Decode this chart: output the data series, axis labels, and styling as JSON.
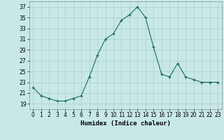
{
  "x_vals": [
    0,
    1,
    2,
    3,
    4,
    5,
    6,
    7,
    8,
    9,
    10,
    11,
    12,
    13,
    14,
    15,
    16,
    17,
    18,
    19,
    20,
    21,
    22,
    23
  ],
  "y_vals": [
    22,
    20.5,
    20,
    19.5,
    19.5,
    20,
    20.5,
    24,
    28,
    31,
    32,
    34.5,
    35.5,
    37,
    35,
    29.5,
    24.5,
    24,
    26.5,
    24,
    23.5,
    23,
    23,
    23
  ],
  "line_color": "#1a6b5a",
  "bg_color": "#c8e8e8",
  "grid_color": "#aacccc",
  "xlabel": "Humidex (Indice chaleur)",
  "ylim": [
    18,
    38
  ],
  "xlim": [
    -0.5,
    23.5
  ],
  "yticks": [
    19,
    21,
    23,
    25,
    27,
    29,
    31,
    33,
    35,
    37
  ],
  "xtick_labels": [
    "0",
    "1",
    "2",
    "3",
    "4",
    "5",
    "6",
    "7",
    "8",
    "9",
    "10",
    "11",
    "12",
    "13",
    "14",
    "15",
    "16",
    "17",
    "18",
    "19",
    "20",
    "21",
    "22",
    "23"
  ],
  "tick_fontsize": 5.5,
  "xlabel_fontsize": 6.5
}
